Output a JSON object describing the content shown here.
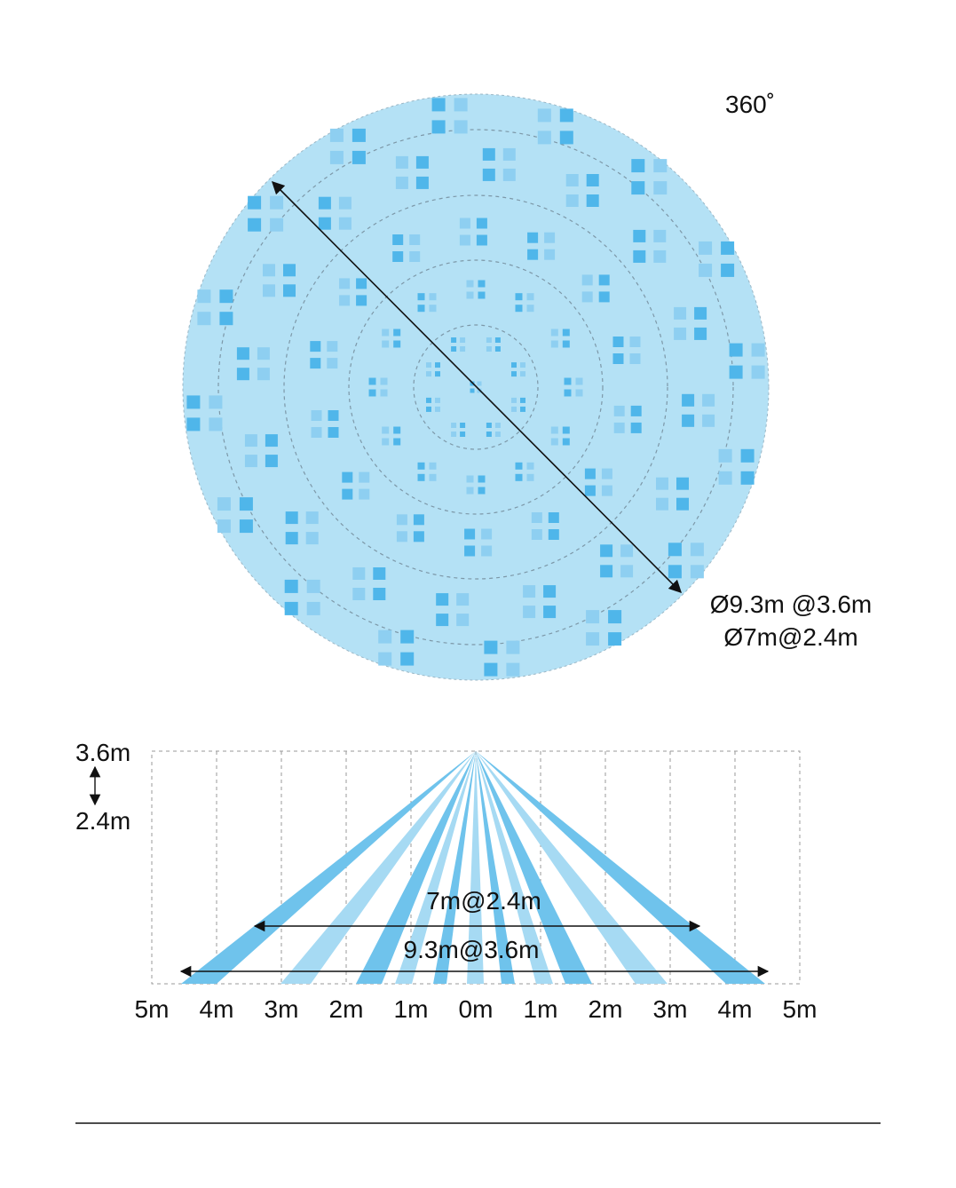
{
  "top_view": {
    "angle_label": "360˚",
    "diameter_line1": "Ø9.3m @3.6m",
    "diameter_line2": "Ø7m@2.4m"
  },
  "side_view": {
    "height_top": "3.6m",
    "height_bottom": "2.4m",
    "span_small": "7m@2.4m",
    "span_large": "9.3m@3.6m",
    "axis_labels": [
      "5m",
      "4m",
      "3m",
      "2m",
      "1m",
      "0m",
      "1m",
      "2m",
      "3m",
      "4m",
      "5m"
    ]
  },
  "colors": {
    "zone_fill": "#b4e1f5",
    "beam_dark": "#6fc3ec",
    "beam_light": "#a6daf3",
    "detector_dark": "#4fb6ea",
    "detector_light": "#8ecff1"
  }
}
